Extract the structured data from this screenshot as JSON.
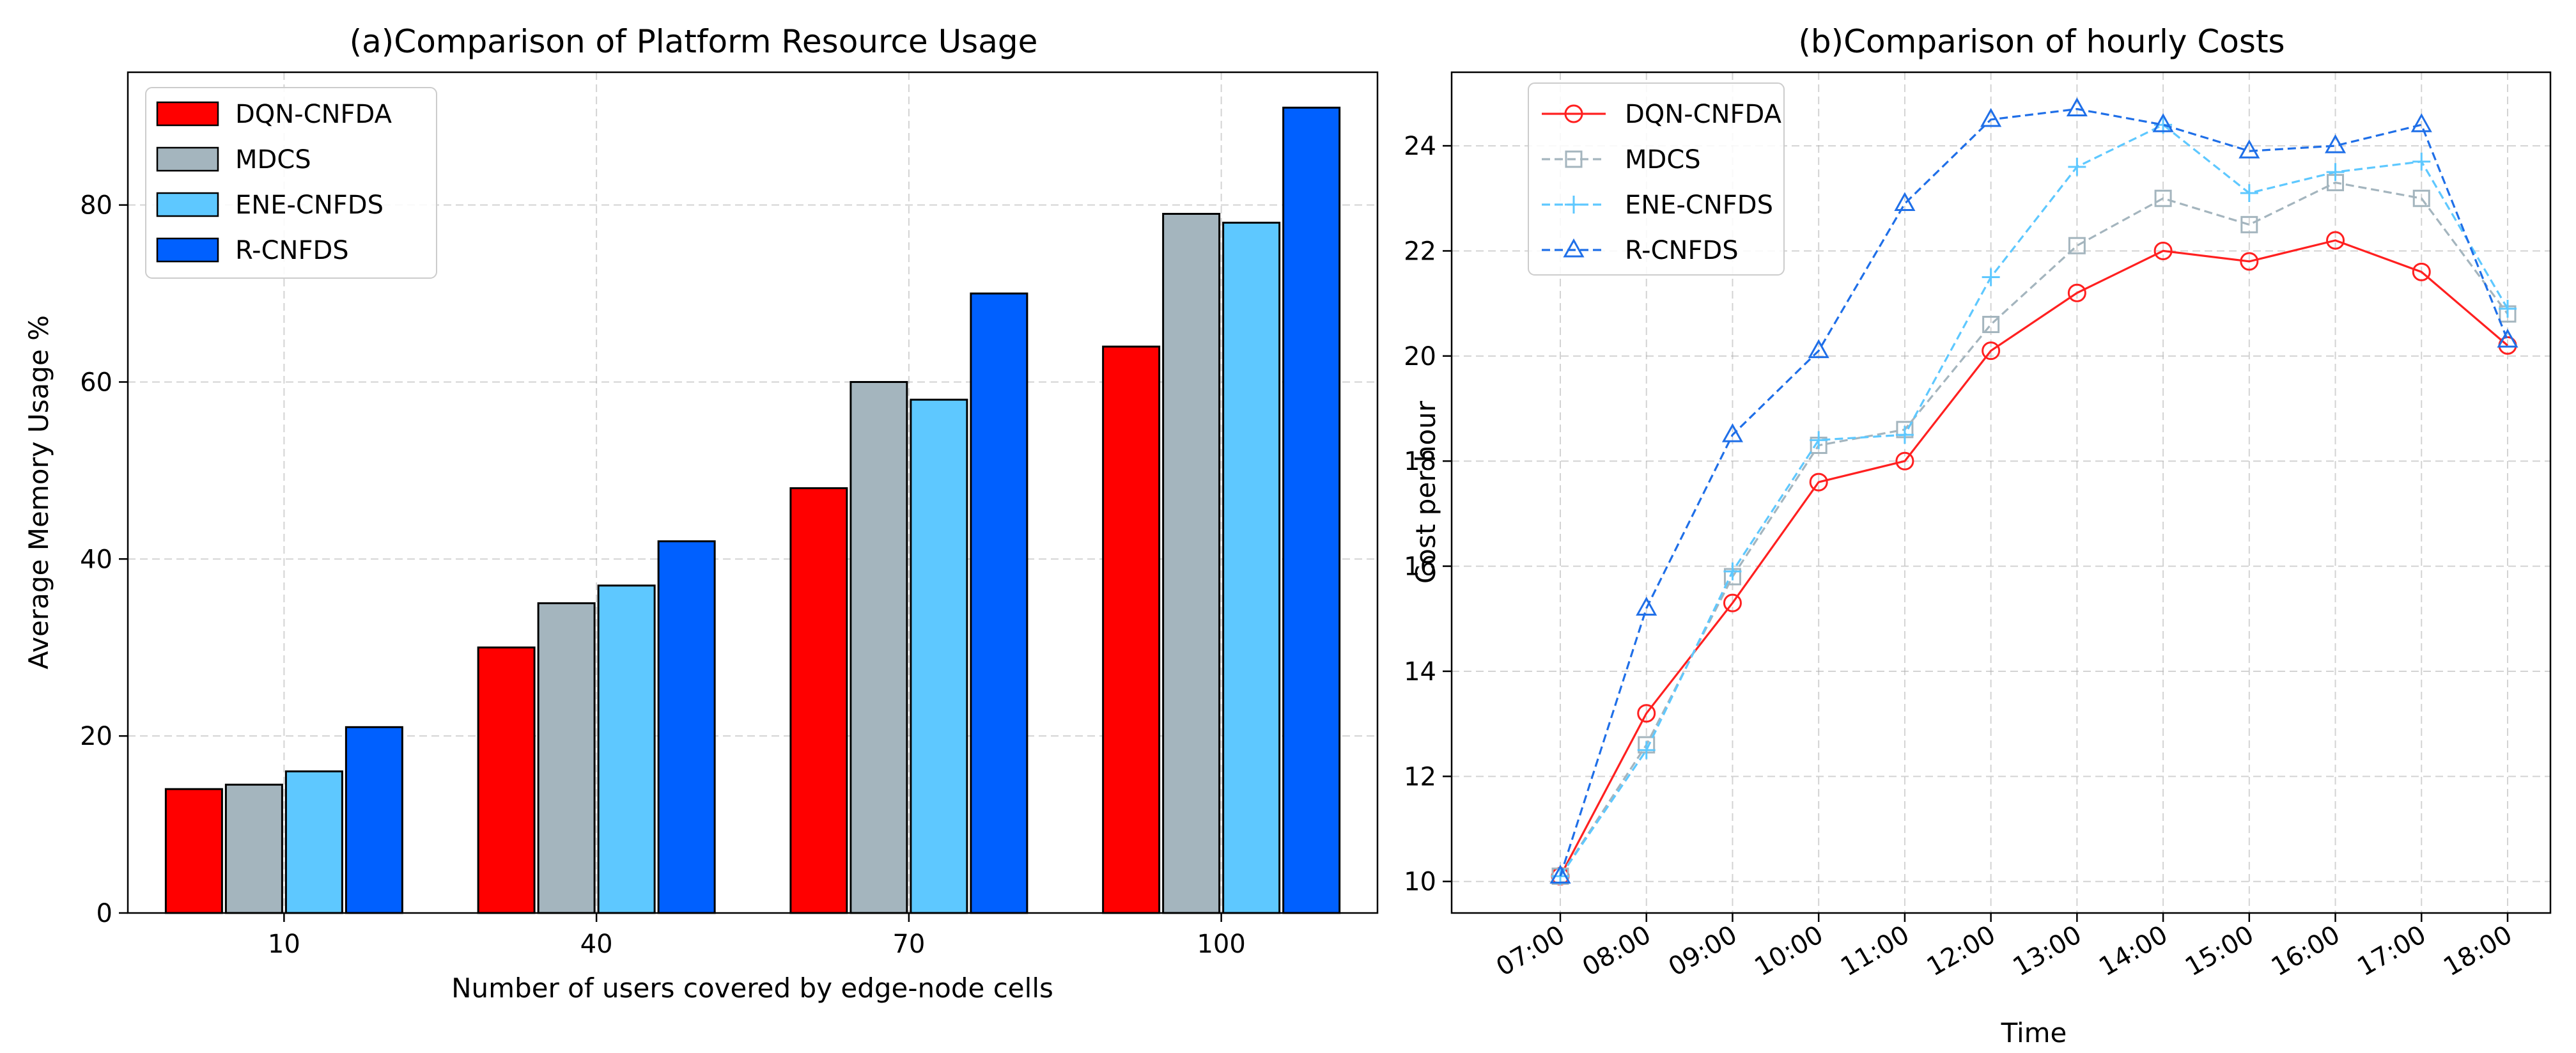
{
  "chart_data": [
    {
      "type": "bar",
      "title": "(a)Comparison of Platform Resource Usage",
      "xlabel": "Number of users covered by edge-node cells",
      "ylabel": "Average Memory Usage %",
      "categories": [
        "10",
        "40",
        "70",
        "100"
      ],
      "ylim": [
        0,
        95
      ],
      "yticks": [
        0,
        20,
        40,
        60,
        80
      ],
      "grid": true,
      "legend_position": "top-left",
      "series": [
        {
          "name": "DQN-CNFDA",
          "color": "#ff0000",
          "values": [
            14,
            30,
            48,
            64
          ]
        },
        {
          "name": "MDCS",
          "color": "#a4b5be",
          "values": [
            14.5,
            35,
            60,
            79
          ]
        },
        {
          "name": "ENE-CNFDS",
          "color": "#5ec8ff",
          "values": [
            16,
            37,
            58,
            78
          ]
        },
        {
          "name": "R-CNFDS",
          "color": "#0060ff",
          "values": [
            21,
            42,
            70,
            91
          ]
        }
      ]
    },
    {
      "type": "line",
      "title": "(b)Comparison of hourly Costs",
      "xlabel": "Time",
      "ylabel": "Cost per hour",
      "categories": [
        "07:00",
        "08:00",
        "09:00",
        "10:00",
        "11:00",
        "12:00",
        "13:00",
        "14:00",
        "15:00",
        "16:00",
        "17:00",
        "18:00"
      ],
      "ylim": [
        9.4,
        25.4
      ],
      "yticks": [
        10,
        12,
        14,
        16,
        18,
        20,
        22,
        24
      ],
      "grid": true,
      "legend_position": "top-left",
      "series": [
        {
          "name": "DQN-CNFDA",
          "color": "#ff2020",
          "marker": "circle",
          "dash": "solid",
          "values": [
            10.1,
            13.2,
            15.3,
            17.6,
            18.0,
            20.1,
            21.2,
            22.0,
            21.8,
            22.2,
            21.6,
            20.2
          ]
        },
        {
          "name": "MDCS",
          "color": "#a4b5be",
          "marker": "square",
          "dash": "dashed",
          "values": [
            10.1,
            12.6,
            15.8,
            18.3,
            18.6,
            20.6,
            22.1,
            23.0,
            22.5,
            23.3,
            23.0,
            20.8
          ]
        },
        {
          "name": "ENE-CNFDS",
          "color": "#5ec8ff",
          "marker": "plus",
          "dash": "dashed",
          "values": [
            10.1,
            12.5,
            15.9,
            18.4,
            18.5,
            21.5,
            23.6,
            24.4,
            23.1,
            23.5,
            23.7,
            20.9
          ]
        },
        {
          "name": "R-CNFDS",
          "color": "#1f6fe8",
          "marker": "triangle",
          "dash": "dashed",
          "values": [
            10.1,
            15.2,
            18.5,
            20.1,
            22.9,
            24.5,
            24.7,
            24.4,
            23.9,
            24.0,
            24.4,
            20.3
          ]
        }
      ]
    }
  ]
}
